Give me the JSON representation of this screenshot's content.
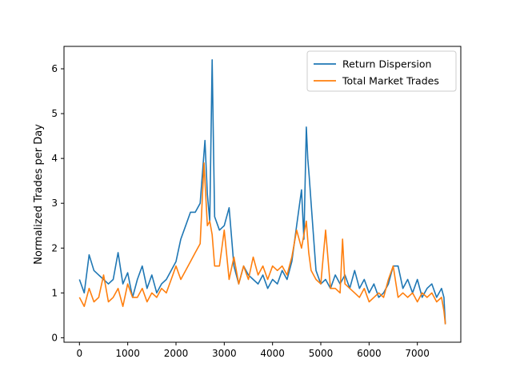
{
  "chart_data": {
    "type": "line",
    "title": "",
    "xlabel": "",
    "ylabel": "Normalized Trades per Day",
    "xlim": [
      -320,
      7900
    ],
    "ylim": [
      -0.1,
      6.5
    ],
    "xticks": [
      0,
      1000,
      2000,
      3000,
      4000,
      5000,
      6000,
      7000
    ],
    "yticks": [
      0,
      1,
      2,
      3,
      4,
      5,
      6
    ],
    "grid": false,
    "legend_position": "top-right",
    "series": [
      {
        "name": "Return Dispersion",
        "color": "#1f77b4",
        "x": [
          0,
          100,
          200,
          300,
          400,
          500,
          600,
          700,
          800,
          900,
          1000,
          1100,
          1200,
          1300,
          1400,
          1500,
          1600,
          1700,
          1800,
          1900,
          2000,
          2100,
          2200,
          2300,
          2400,
          2500,
          2600,
          2650,
          2700,
          2750,
          2780,
          2800,
          2900,
          3000,
          3100,
          3200,
          3300,
          3400,
          3500,
          3600,
          3700,
          3800,
          3900,
          4000,
          4100,
          4200,
          4300,
          4400,
          4500,
          4600,
          4650,
          4700,
          4730,
          4760,
          4800,
          4900,
          5000,
          5100,
          5200,
          5300,
          5400,
          5500,
          5600,
          5700,
          5800,
          5900,
          6000,
          6100,
          6200,
          6300,
          6400,
          6500,
          6600,
          6700,
          6800,
          6900,
          7000,
          7100,
          7200,
          7300,
          7400,
          7500,
          7550,
          7580
        ],
        "y": [
          1.3,
          1.0,
          1.85,
          1.5,
          1.4,
          1.3,
          1.2,
          1.3,
          1.9,
          1.2,
          1.45,
          0.9,
          1.3,
          1.6,
          1.1,
          1.4,
          1.0,
          1.2,
          1.3,
          1.5,
          1.7,
          2.2,
          2.5,
          2.8,
          2.8,
          3.0,
          4.4,
          3.2,
          2.6,
          6.2,
          4.0,
          2.7,
          2.4,
          2.5,
          2.9,
          1.6,
          1.2,
          1.6,
          1.4,
          1.3,
          1.2,
          1.4,
          1.1,
          1.3,
          1.2,
          1.5,
          1.3,
          1.7,
          2.5,
          3.3,
          2.2,
          4.7,
          4.0,
          3.6,
          3.0,
          1.5,
          1.2,
          1.3,
          1.1,
          1.4,
          1.2,
          1.4,
          1.1,
          1.5,
          1.1,
          1.3,
          1.0,
          1.2,
          0.9,
          1.0,
          1.2,
          1.6,
          1.6,
          1.1,
          1.3,
          1.0,
          1.3,
          0.9,
          1.1,
          1.2,
          0.9,
          1.1,
          0.9,
          0.3
        ]
      },
      {
        "name": "Total Market Trades",
        "color": "#ff7f0e",
        "x": [
          0,
          100,
          200,
          300,
          400,
          500,
          600,
          700,
          800,
          900,
          1000,
          1100,
          1200,
          1300,
          1400,
          1500,
          1600,
          1700,
          1800,
          1900,
          2000,
          2100,
          2200,
          2300,
          2400,
          2500,
          2580,
          2650,
          2700,
          2750,
          2800,
          2900,
          3000,
          3100,
          3200,
          3300,
          3400,
          3500,
          3600,
          3700,
          3800,
          3900,
          4000,
          4100,
          4200,
          4300,
          4400,
          4500,
          4600,
          4700,
          4750,
          4800,
          4900,
          5000,
          5100,
          5200,
          5300,
          5400,
          5450,
          5500,
          5600,
          5700,
          5800,
          5900,
          6000,
          6100,
          6200,
          6300,
          6400,
          6500,
          6600,
          6700,
          6800,
          6900,
          7000,
          7100,
          7200,
          7300,
          7400,
          7500,
          7550,
          7580
        ],
        "y": [
          0.9,
          0.7,
          1.1,
          0.8,
          0.9,
          1.4,
          0.8,
          0.9,
          1.1,
          0.7,
          1.2,
          0.9,
          0.9,
          1.1,
          0.8,
          1.0,
          0.9,
          1.1,
          1.0,
          1.3,
          1.6,
          1.3,
          1.5,
          1.7,
          1.9,
          2.1,
          3.9,
          2.5,
          2.6,
          2.3,
          1.6,
          1.6,
          2.4,
          1.3,
          1.8,
          1.2,
          1.6,
          1.3,
          1.8,
          1.4,
          1.6,
          1.3,
          1.6,
          1.5,
          1.6,
          1.4,
          1.8,
          2.4,
          2.0,
          2.6,
          1.9,
          1.5,
          1.3,
          1.2,
          2.4,
          1.1,
          1.1,
          1.0,
          2.2,
          1.2,
          1.1,
          1.0,
          0.9,
          1.1,
          0.8,
          0.9,
          1.0,
          0.9,
          1.3,
          1.6,
          0.9,
          1.0,
          0.9,
          1.0,
          0.8,
          1.0,
          0.9,
          1.0,
          0.8,
          0.9,
          0.6,
          0.3
        ]
      }
    ]
  }
}
